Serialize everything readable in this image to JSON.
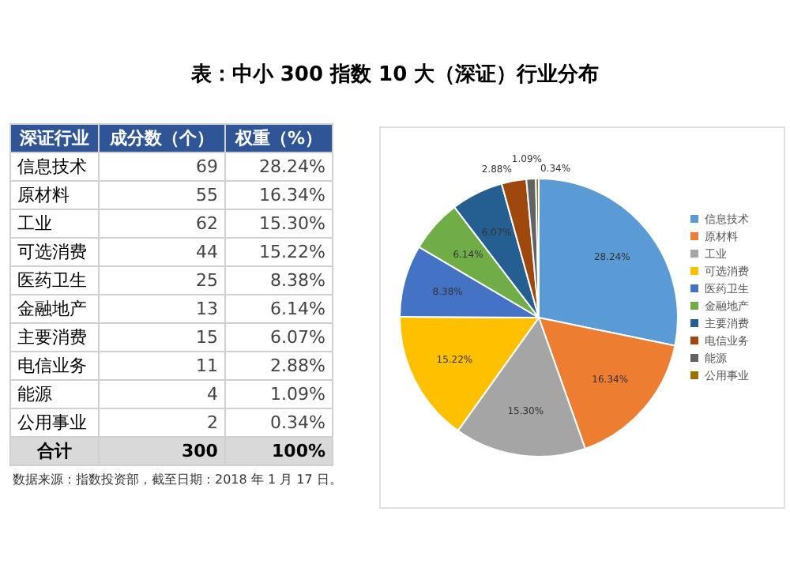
{
  "chart_data": [
    {
      "type": "other",
      "title": "表：中小 300 指数 10 大（深证）行业分布",
      "xlabel": "深证行业",
      "categories": [
        "信息技术",
        "原材料",
        "工业",
        "可选消费",
        "医药卫生",
        "金融地产",
        "主要消费",
        "电信业务",
        "能源",
        "公用事业"
      ],
      "series": [
        {
          "name": "成分数（个）",
          "values": [
            69,
            55,
            62,
            44,
            25,
            13,
            15,
            11,
            4,
            2
          ],
          "value_labels": [
            "69",
            "55",
            "62",
            "44",
            "25",
            "13",
            "15",
            "11",
            "4",
            "2"
          ]
        },
        {
          "name": "权重（%）",
          "values": [
            28.24,
            16.34,
            15.3,
            15.22,
            8.38,
            6.14,
            6.07,
            2.88,
            1.09,
            0.34
          ],
          "value_labels": [
            "28.24%",
            "16.34%",
            "15.30%",
            "15.22%",
            "8.38%",
            "6.14%",
            "6.07%",
            "2.88%",
            "1.09%",
            "0.34%"
          ]
        }
      ],
      "totals": [
        "合计",
        "300",
        "100%"
      ],
      "annotations": [
        "数据来源：指数投资部，截至日期：2018 年 1 月 17 日。"
      ]
    },
    {
      "type": "pie",
      "categories": [
        "信息技术",
        "原材料",
        "工业",
        "可选消费",
        "医药卫生",
        "金融地产",
        "主要消费",
        "电信业务",
        "能源",
        "公用事业"
      ],
      "values": [
        28.24,
        16.34,
        15.3,
        15.22,
        8.38,
        6.14,
        6.07,
        2.88,
        1.09,
        0.34
      ],
      "value_labels": [
        "28.24%",
        "16.34%",
        "15.30%",
        "15.22%",
        "8.38%",
        "6.14%",
        "6.07%",
        "2.88%",
        "1.09%",
        "0.34%"
      ],
      "colors": [
        "#5b9bd5",
        "#ed7d31",
        "#a5a5a5",
        "#ffc000",
        "#4472c4",
        "#70ad47",
        "#255e91",
        "#9e480e",
        "#636363",
        "#997300"
      ],
      "legend": "right"
    }
  ]
}
